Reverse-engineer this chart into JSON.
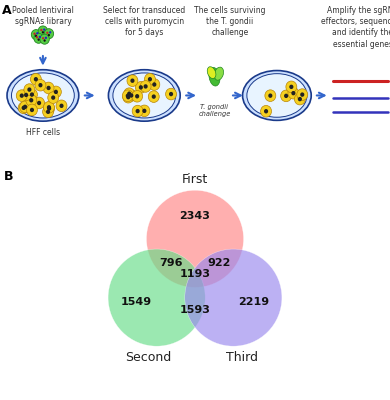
{
  "panel_a_label": "A",
  "panel_b_label": "B",
  "venn": {
    "first_label": "First",
    "second_label": "Second",
    "third_label": "Third",
    "first_only": "2343",
    "second_only": "1549",
    "third_only": "2219",
    "first_second": "796",
    "first_third": "922",
    "second_third": "1593",
    "all_three": "1193",
    "first_color": "#FF8585",
    "second_color": "#66DD88",
    "third_color": "#9988EE",
    "alpha": 0.65
  },
  "schematic": {
    "step1_title": "Pooled lentiviral\nsgRNAs library",
    "step2_title": "Select for transduced\ncells with puromycin\nfor 5 days",
    "step3_title": "The cells surviving\nthe T. gondii\nchallenge",
    "step4_title": "Amplify the sgRNA\neffectors, sequencing\nand identify the\nessential genes",
    "step3_sublabel": "T. gondii\nchallenge",
    "hff_label": "HFF cells"
  },
  "background_color": "#FFFFFF"
}
